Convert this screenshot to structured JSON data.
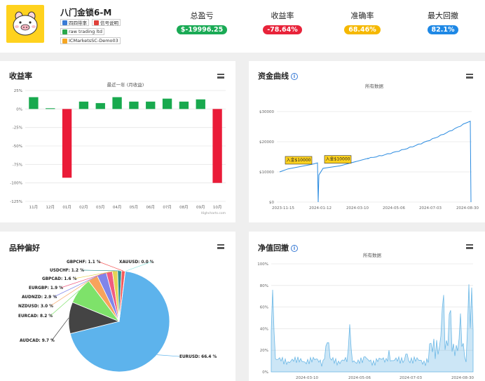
{
  "header": {
    "account_name": "八门金锁6-M",
    "tags": [
      {
        "label": "四四带率",
        "icon": "person-icon",
        "color": "#3a7bd5"
      },
      {
        "label": "信号说明",
        "icon": "document-icon",
        "color": "#e0403a"
      },
      {
        "label": "raw trading ltd",
        "icon": "broker-icon",
        "color": "#2aa84a"
      },
      {
        "label": "ICMarketsSC-Demo03",
        "icon": "server-icon",
        "color": "#f5a623"
      }
    ],
    "stats": [
      {
        "label": "总盈亏",
        "value": "$-19996.25",
        "color": "#1aaa55"
      },
      {
        "label": "收益率",
        "value": "-78.64%",
        "color": "#e8233a"
      },
      {
        "label": "准确率",
        "value": "68.46%",
        "color": "#f5b800"
      },
      {
        "label": "最大回撤",
        "value": "82.1%",
        "color": "#1e88e5"
      }
    ]
  },
  "returns_card": {
    "title": "收益率",
    "chart_data": {
      "type": "bar",
      "subtitle": "最近一年 (月收益)",
      "categories": [
        "11月",
        "12月",
        "01月",
        "02月",
        "03月",
        "04月",
        "05月",
        "06月",
        "07月",
        "08月",
        "09月",
        "10月"
      ],
      "values": [
        16,
        1,
        -93,
        10,
        8,
        16,
        10,
        10,
        14,
        10,
        13,
        -100
      ],
      "yticks": [
        "25%",
        "0%",
        "-25%",
        "-50%",
        "-75%",
        "-100%",
        "-125%"
      ],
      "ylim": [
        -125,
        25
      ],
      "positive_color": "#18a94e",
      "negative_color": "#ea1b38",
      "credit": "Highcharts.com"
    }
  },
  "equity_card": {
    "title": "资金曲线",
    "chart_data": {
      "type": "line",
      "subtitle": "所有数据",
      "yticks": [
        "$30000",
        "$20000",
        "$10000",
        "$0"
      ],
      "xticks": [
        "2023-11-15",
        "2024-01-12",
        "2024-03-10",
        "2024-05-06",
        "2024-07-03",
        "2024-08-30"
      ],
      "annotations": [
        "入金$10000",
        "入金$10000"
      ],
      "line_color": "#2b8be0"
    }
  },
  "symbols_card": {
    "title": "品种偏好",
    "chart_data": {
      "type": "pie",
      "slices": [
        {
          "name": "EURUSD",
          "value": 66.4,
          "label": "EURUSD: 66.4 %",
          "color": "#5db3ec"
        },
        {
          "name": "AUDCAD",
          "value": 9.7,
          "label": "AUDCAD: 9.7 %",
          "color": "#444444"
        },
        {
          "name": "EURCAD",
          "value": 8.2,
          "label": "EURCAD: 8.2 %",
          "color": "#7ee26a"
        },
        {
          "name": "NZDUSD",
          "value": 3.0,
          "label": "NZDUSD: 3.0 %",
          "color": "#f7a35c"
        },
        {
          "name": "AUDNZD",
          "value": 2.9,
          "label": "AUDNZD: 2.9 %",
          "color": "#8085e9"
        },
        {
          "name": "EURGBP",
          "value": 1.9,
          "label": "EURGBP: 1.9 %",
          "color": "#f15c80"
        },
        {
          "name": "GBPCAD",
          "value": 1.6,
          "label": "GBPCAD: 1.6 %",
          "color": "#e4d354"
        },
        {
          "name": "USDCHF",
          "value": 1.2,
          "label": "USDCHF: 1.2 %",
          "color": "#2b908f"
        },
        {
          "name": "GBPCHF",
          "value": 1.1,
          "label": "GBPCHF: 1.1 %",
          "color": "#f45b5b"
        },
        {
          "name": "XAUUSD",
          "value": 0.0,
          "label": "XAUUSD: 0.0 %",
          "color": "#91e8e1"
        }
      ]
    }
  },
  "drawdown_card": {
    "title": "净值回撤",
    "chart_data": {
      "type": "area",
      "subtitle": "所有数据",
      "yticks": [
        "100%",
        "80%",
        "60%",
        "40%",
        "20%",
        "0%"
      ],
      "xticks": [
        "2024-03-10",
        "2024-05-06",
        "2024-07-03",
        "2024-08-30"
      ],
      "color": "#6cb8e6"
    }
  }
}
